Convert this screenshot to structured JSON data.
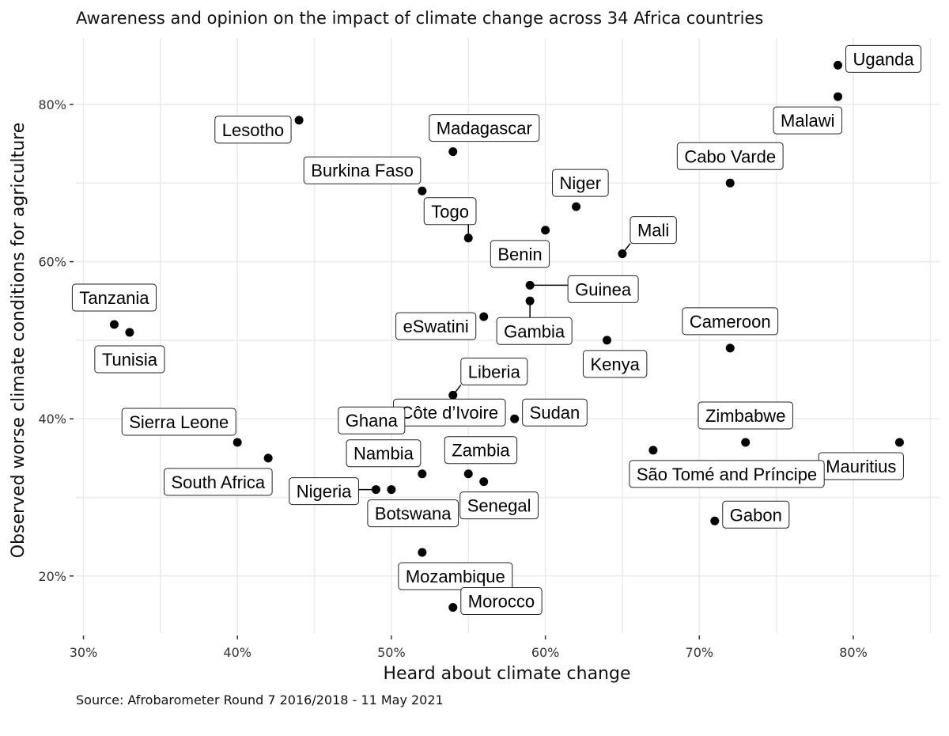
{
  "chart_data": {
    "type": "scatter",
    "title": "Awareness and opinion on the impact of climate change across 34 Africa countries",
    "xlabel": "Heard about climate change",
    "ylabel": "Observed worse climate conditions for agriculture",
    "caption": "Source: Afrobarometer Round 7 2016/2018 - 11 May 2021",
    "xlim": [
      29.5,
      85.5
    ],
    "ylim": [
      13,
      89
    ],
    "x_ticks": [
      30,
      40,
      50,
      60,
      70,
      80
    ],
    "x_tick_labels": [
      "30%",
      "40%",
      "50%",
      "60%",
      "70%",
      "80%"
    ],
    "y_ticks": [
      20,
      40,
      60,
      80
    ],
    "y_tick_labels": [
      "20%",
      "40%",
      "60%",
      "80%"
    ],
    "grid": true,
    "point_color": "#000000",
    "points": [
      {
        "label": "Uganda",
        "x": 79,
        "y": 85,
        "place": "right"
      },
      {
        "label": "Malawi",
        "x": 79,
        "y": 81,
        "place": "below-left"
      },
      {
        "label": "Lesotho",
        "x": 44,
        "y": 78,
        "place": "left"
      },
      {
        "label": "Madagascar",
        "x": 54,
        "y": 74,
        "place": "above-right"
      },
      {
        "label": "Cabo Varde",
        "x": 72,
        "y": 70,
        "place": "above"
      },
      {
        "label": "Burkina Faso",
        "x": 52,
        "y": 69,
        "place": "above-left"
      },
      {
        "label": "Niger",
        "x": 62,
        "y": 67,
        "place": "above-right"
      },
      {
        "label": "Benin",
        "x": 60,
        "y": 64,
        "place": "below-left"
      },
      {
        "label": "Togo",
        "x": 55,
        "y": 63,
        "place": "above-left-leader"
      },
      {
        "label": "Mali",
        "x": 65,
        "y": 61,
        "place": "above-right-leader"
      },
      {
        "label": "Guinea",
        "x": 59,
        "y": 57,
        "place": "right-leader"
      },
      {
        "label": "Gambia",
        "x": 59,
        "y": 55,
        "place": "below-leader"
      },
      {
        "label": "eSwatini",
        "x": 56,
        "y": 53,
        "place": "left"
      },
      {
        "label": "Tanzania",
        "x": 32,
        "y": 52,
        "place": "above"
      },
      {
        "label": "Tunisia",
        "x": 33,
        "y": 51,
        "place": "below"
      },
      {
        "label": "Kenya",
        "x": 64,
        "y": 50,
        "place": "below-right"
      },
      {
        "label": "Cameroon",
        "x": 72,
        "y": 49,
        "place": "above"
      },
      {
        "label": "Liberia",
        "x": 54,
        "y": 43,
        "place": "above-right-leader"
      },
      {
        "label": "Sudan",
        "x": 58,
        "y": 40,
        "place": "right"
      },
      {
        "label": "Côte d’Ivoire",
        "x": 53,
        "y": 40,
        "place": "center"
      },
      {
        "label": "Ghana",
        "x": 52,
        "y": 40,
        "place": "left-leader"
      },
      {
        "label": "Sierra Leone",
        "x": 40,
        "y": 37,
        "place": "above-left"
      },
      {
        "label": "Zimbabwe",
        "x": 73,
        "y": 37,
        "place": "above"
      },
      {
        "label": "Mauritius",
        "x": 83,
        "y": 37,
        "place": "below-left"
      },
      {
        "label": "São Tomé and Príncipe",
        "x": 67,
        "y": 36,
        "place": "below-right"
      },
      {
        "label": "South Africa",
        "x": 42,
        "y": 35,
        "place": "below-left"
      },
      {
        "label": "Nambia",
        "x": 52,
        "y": 33,
        "place": "above-left"
      },
      {
        "label": "Zambia",
        "x": 55,
        "y": 33,
        "place": "above-right"
      },
      {
        "label": "Senegal",
        "x": 56,
        "y": 32,
        "place": "below-right"
      },
      {
        "label": "Nigeria",
        "x": 49,
        "y": 31,
        "place": "left-leader"
      },
      {
        "label": "Botswana",
        "x": 50,
        "y": 31,
        "place": "below-right"
      },
      {
        "label": "Gabon",
        "x": 71,
        "y": 27,
        "place": "right"
      },
      {
        "label": "Mozambique",
        "x": 52,
        "y": 23,
        "place": "below-right"
      },
      {
        "label": "Morocco",
        "x": 54,
        "y": 16,
        "place": "right"
      }
    ]
  }
}
